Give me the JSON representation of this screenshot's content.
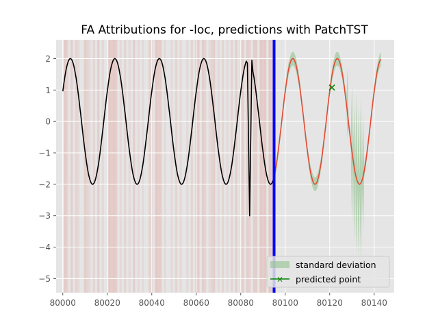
{
  "chart_data": {
    "type": "line",
    "title": "FA Attributions for -loc, predictions with PatchTST",
    "xlabel": "",
    "ylabel": "",
    "xlim": [
      79997,
      80149
    ],
    "ylim": [
      -5.45,
      2.6
    ],
    "x_ticks": [
      80000,
      80020,
      80040,
      80060,
      80080,
      80100,
      80120,
      80140
    ],
    "y_ticks": [
      2,
      1,
      0,
      -1,
      -2,
      -3,
      -4,
      -5
    ],
    "x_tick_labels": [
      "80000",
      "80020",
      "80040",
      "80060",
      "80080",
      "80100",
      "80120",
      "80140"
    ],
    "y_tick_labels": [
      "2",
      "1",
      "0",
      "−1",
      "−2",
      "−3",
      "−4",
      "−5"
    ],
    "grid": true,
    "legend_placement": "lower-right",
    "history": {
      "color": "#000000",
      "x_start": 80000,
      "x_end": 80095,
      "amplitude": 2,
      "period": 20,
      "phase_offset": 0.5,
      "anomaly": [
        {
          "x": 80083,
          "y": 1.85
        },
        {
          "x": 80084,
          "y": -3.0
        },
        {
          "x": 80085,
          "y": 1.95
        }
      ]
    },
    "forecast_boundary": {
      "x": 80095,
      "color": "#0000ff"
    },
    "predictions": {
      "color": "#e24a33",
      "x_start": 80095,
      "x_end": 80143
    },
    "band_overrides": [
      {
        "x": 80128,
        "upper": 1.7,
        "lower": -0.5
      },
      {
        "x": 80130,
        "upper": 1.2,
        "lower": -3.3
      },
      {
        "x": 80131,
        "upper": 0.6,
        "lower": -3.8
      },
      {
        "x": 80132,
        "upper": 0.9,
        "lower": -4.2
      },
      {
        "x": 80133,
        "upper": 0.55,
        "lower": -4.4
      },
      {
        "x": 80134,
        "upper": 0.9,
        "lower": -4.5
      },
      {
        "x": 80135,
        "upper": 0.2,
        "lower": -3.5
      }
    ],
    "predicted_point": {
      "x": 80121,
      "y": 1.08,
      "color": "#008000"
    },
    "attributions": [
      {
        "x": 80001,
        "w": 0.5
      },
      {
        "x": 80002,
        "w": 0.3
      },
      {
        "x": 80004,
        "w": 0.4
      },
      {
        "x": 80006,
        "w": 0.3
      },
      {
        "x": 80007,
        "w": 0.2
      },
      {
        "x": 80010,
        "w": 0.4
      },
      {
        "x": 80011,
        "w": 0.3
      },
      {
        "x": 80012,
        "w": 0.2
      },
      {
        "x": 80014,
        "w": 0.3
      },
      {
        "x": 80016,
        "w": 0.4
      },
      {
        "x": 80018,
        "w": 0.2
      },
      {
        "x": 80021,
        "w": 0.5
      },
      {
        "x": 80022,
        "w": 0.4
      },
      {
        "x": 80023,
        "w": 0.5
      },
      {
        "x": 80024,
        "w": 0.4
      },
      {
        "x": 80026,
        "w": 0.2
      },
      {
        "x": 80028,
        "w": 0.3
      },
      {
        "x": 80030,
        "w": 0.2
      },
      {
        "x": 80032,
        "w": 0.4
      },
      {
        "x": 80034,
        "w": 0.2
      },
      {
        "x": 80036,
        "w": 0.2
      },
      {
        "x": 80039,
        "w": 0.3
      },
      {
        "x": 80040,
        "w": 0.3
      },
      {
        "x": 80042,
        "w": 0.5
      },
      {
        "x": 80043,
        "w": 0.4
      },
      {
        "x": 80044,
        "w": 0.4
      },
      {
        "x": 80046,
        "w": 0.2
      },
      {
        "x": 80049,
        "w": 0.2
      },
      {
        "x": 80051,
        "w": 0.3
      },
      {
        "x": 80053,
        "w": 0.2
      },
      {
        "x": 80056,
        "w": 0.2
      },
      {
        "x": 80058,
        "w": 0.3
      },
      {
        "x": 80060,
        "w": 0.4
      },
      {
        "x": 80061,
        "w": 0.4
      },
      {
        "x": 80063,
        "w": 0.4
      },
      {
        "x": 80064,
        "w": 0.3
      },
      {
        "x": 80066,
        "w": 0.2
      },
      {
        "x": 80067,
        "w": 0.3
      },
      {
        "x": 80068,
        "w": 0.4
      },
      {
        "x": 80070,
        "w": 0.2
      },
      {
        "x": 80072,
        "w": 0.3
      },
      {
        "x": 80074,
        "w": 0.2
      },
      {
        "x": 80076,
        "w": 0.3
      },
      {
        "x": 80078,
        "w": 0.4
      },
      {
        "x": 80080,
        "w": 0.3
      },
      {
        "x": 80081,
        "w": 0.4
      },
      {
        "x": 80083,
        "w": 0.4
      },
      {
        "x": 80084,
        "w": 0.3
      },
      {
        "x": 80086,
        "w": 0.4
      },
      {
        "x": 80087,
        "w": 0.4
      },
      {
        "x": 80089,
        "w": 0.5
      },
      {
        "x": 80090,
        "w": 0.4
      },
      {
        "x": 80091,
        "w": 0.5
      },
      {
        "x": 80093,
        "w": 0.5
      },
      {
        "x": 80094,
        "w": 0.4
      }
    ],
    "legend": [
      {
        "label": "standard deviation",
        "kind": "patch",
        "color": "#8cbf88"
      },
      {
        "label": "predicted point",
        "kind": "line-marker",
        "color": "#008000"
      }
    ]
  }
}
